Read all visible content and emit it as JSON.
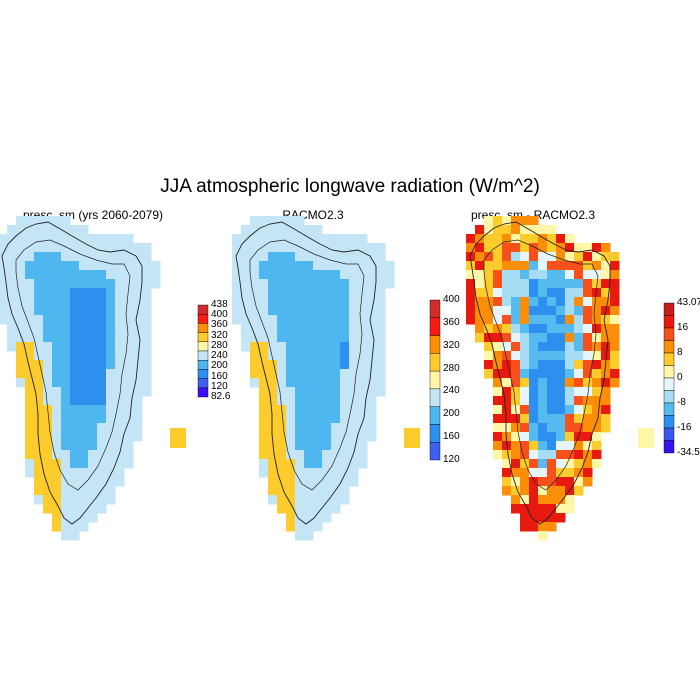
{
  "title": "JJA atmospheric longwave radiation (W/m^2)",
  "colors": {
    "coast": "#222222",
    "ramp_abs": [
      "#3d10f0",
      "#3f5ff0",
      "#2d90ee",
      "#4fb7ef",
      "#c4e5f5",
      "#fff6a8",
      "#fbcc2c",
      "#fc8d07",
      "#f71c13",
      "#d02c2c"
    ],
    "ramp_diff": [
      "#3d10f0",
      "#3a55ee",
      "#2d90ee",
      "#55bbef",
      "#a6dcf4",
      "#e4f5fb",
      "#fff6a8",
      "#fbcc2c",
      "#fc8d07",
      "#f7501a",
      "#e81a10",
      "#c91c1c"
    ]
  },
  "panels": [
    {
      "id": "model",
      "title": "presc_sm (yrs 2060-2079)",
      "colorbar": {
        "labels": [
          "438",
          "400",
          "360",
          "320",
          "280",
          "240",
          "200",
          "160",
          "120",
          "82.6"
        ]
      }
    },
    {
      "id": "racmo",
      "title": "RACMO2.3",
      "colorbar": {
        "labels": [
          "400",
          "360",
          "320",
          "280",
          "240",
          "200",
          "160",
          "120"
        ]
      }
    },
    {
      "id": "diff",
      "title": "presc_sm - RACMO2.3",
      "colorbar": {
        "labels": [
          "43.07",
          "16",
          "8",
          "0",
          "-8",
          "-16",
          "-34.5"
        ]
      }
    }
  ]
}
